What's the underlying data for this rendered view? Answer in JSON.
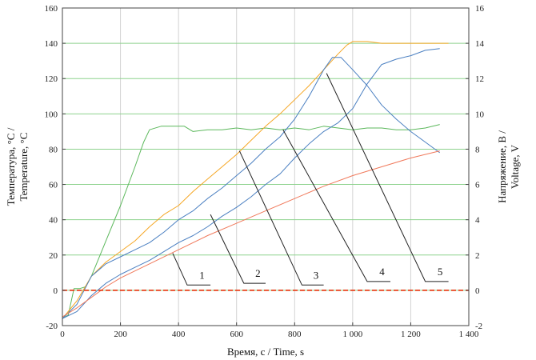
{
  "chart_data": {
    "type": "line",
    "xlabel": "Время, с / Time, s",
    "ylabel_left_lines": [
      "Температура, °С /",
      "Temperature, °С"
    ],
    "ylabel_right_lines": [
      "Напряжение, В /",
      "Voltage, V"
    ],
    "xlim": [
      0,
      1400
    ],
    "ylim_left": [
      -20,
      160
    ],
    "ylim_right": [
      -2,
      16
    ],
    "x_ticks": [
      0,
      200,
      400,
      600,
      800,
      1000,
      1200,
      1400
    ],
    "x_tick_labels": [
      "0",
      "200",
      "400",
      "600",
      "800",
      "1 000",
      "1 200",
      "1 400"
    ],
    "y_ticks_left": [
      -20,
      0,
      20,
      40,
      60,
      80,
      100,
      120,
      140,
      160
    ],
    "y_tick_labels_left": [
      "-20",
      "0",
      "20",
      "40",
      "60",
      "80",
      "100",
      "120",
      "140",
      "160"
    ],
    "y_ticks_right": [
      -2,
      0,
      2,
      4,
      6,
      8,
      10,
      12,
      14,
      16
    ],
    "y_tick_labels_right": [
      "-2",
      "0",
      "2",
      "4",
      "6",
      "8",
      "10",
      "12",
      "14",
      "16"
    ],
    "grid": true,
    "colors": {
      "green": "#5cb85c",
      "orange": "#f5a623",
      "blue": "#4a7fc1",
      "salmon": "#f0795b",
      "red_dashed": "#e8401c",
      "grid_green": "#8ed28e",
      "grid_gray": "#d3d3d3"
    },
    "series": [
      {
        "color_key": "green",
        "axis": "left",
        "x": [
          0,
          20,
          40,
          60,
          80,
          100,
          150,
          200,
          250,
          280,
          300,
          340,
          380,
          420,
          450,
          500,
          550,
          600,
          650,
          700,
          750,
          800,
          850,
          900,
          950,
          1000,
          1050,
          1100,
          1150,
          1200,
          1250,
          1300
        ],
        "y": [
          -16,
          -14,
          1,
          1,
          2,
          8,
          28,
          48,
          70,
          84,
          91,
          93,
          93,
          93,
          90,
          91,
          91,
          92,
          91,
          92,
          91,
          92,
          91,
          93,
          92,
          91,
          92,
          92,
          91,
          91,
          92,
          94
        ]
      },
      {
        "color_key": "orange",
        "axis": "left",
        "x": [
          0,
          50,
          100,
          150,
          200,
          250,
          300,
          350,
          400,
          450,
          500,
          550,
          600,
          650,
          700,
          750,
          800,
          850,
          900,
          950,
          980,
          1000,
          1050,
          1100,
          1150,
          1200,
          1250,
          1300,
          1330
        ],
        "y": [
          -16,
          -6,
          8,
          16,
          22,
          28,
          36,
          43,
          48,
          56,
          63,
          70,
          77,
          85,
          93,
          100,
          108,
          116,
          125,
          134,
          139,
          141,
          141,
          140,
          140,
          140,
          140,
          140,
          140
        ]
      },
      {
        "color_key": "blue",
        "axis": "left",
        "x": [
          0,
          50,
          100,
          150,
          200,
          250,
          300,
          350,
          400,
          450,
          500,
          550,
          600,
          650,
          700,
          750,
          800,
          850,
          900,
          930,
          960,
          1000,
          1050,
          1100,
          1150,
          1200,
          1250,
          1300
        ],
        "y": [
          -16,
          -8,
          8,
          15,
          19,
          23,
          27,
          33,
          40,
          45,
          52,
          58,
          65,
          72,
          80,
          87,
          97,
          110,
          125,
          132,
          132,
          125,
          116,
          105,
          97,
          90,
          84,
          78
        ]
      },
      {
        "color_key": "blue",
        "axis": "left",
        "x": [
          0,
          50,
          100,
          150,
          200,
          250,
          300,
          350,
          400,
          450,
          500,
          550,
          600,
          650,
          700,
          750,
          800,
          850,
          900,
          950,
          1000,
          1050,
          1100,
          1150,
          1200,
          1250,
          1300
        ],
        "y": [
          -16,
          -12,
          -3,
          4,
          9,
          13,
          17,
          22,
          27,
          31,
          36,
          42,
          47,
          53,
          60,
          66,
          75,
          83,
          90,
          95,
          103,
          117,
          128,
          131,
          133,
          136,
          137
        ]
      },
      {
        "color_key": "salmon",
        "axis": "left",
        "x": [
          0,
          50,
          100,
          150,
          200,
          300,
          400,
          500,
          600,
          700,
          800,
          900,
          1000,
          1100,
          1200,
          1300
        ],
        "y": [
          -15,
          -10,
          -4,
          2,
          7,
          15,
          23,
          31,
          38,
          45,
          52,
          59,
          65,
          70,
          75,
          79
        ]
      },
      {
        "color_key": "red_dashed",
        "axis": "left",
        "dashed": true,
        "x": [
          0,
          1400
        ],
        "y": [
          0,
          0
        ]
      }
    ],
    "annotations": [
      {
        "label": "1",
        "from": [
          380,
          21
        ],
        "to": [
          430,
          3
        ],
        "end": [
          510,
          3
        ]
      },
      {
        "label": "2",
        "from": [
          510,
          43
        ],
        "to": [
          625,
          4
        ],
        "end": [
          700,
          4
        ]
      },
      {
        "label": "3",
        "from": [
          610,
          79
        ],
        "to": [
          825,
          3
        ],
        "end": [
          900,
          3
        ]
      },
      {
        "label": "4",
        "from": [
          760,
          91
        ],
        "to": [
          1050,
          5
        ],
        "end": [
          1130,
          5
        ]
      },
      {
        "label": "5",
        "from": [
          910,
          123
        ],
        "to": [
          1250,
          5
        ],
        "end": [
          1330,
          5
        ]
      }
    ]
  }
}
